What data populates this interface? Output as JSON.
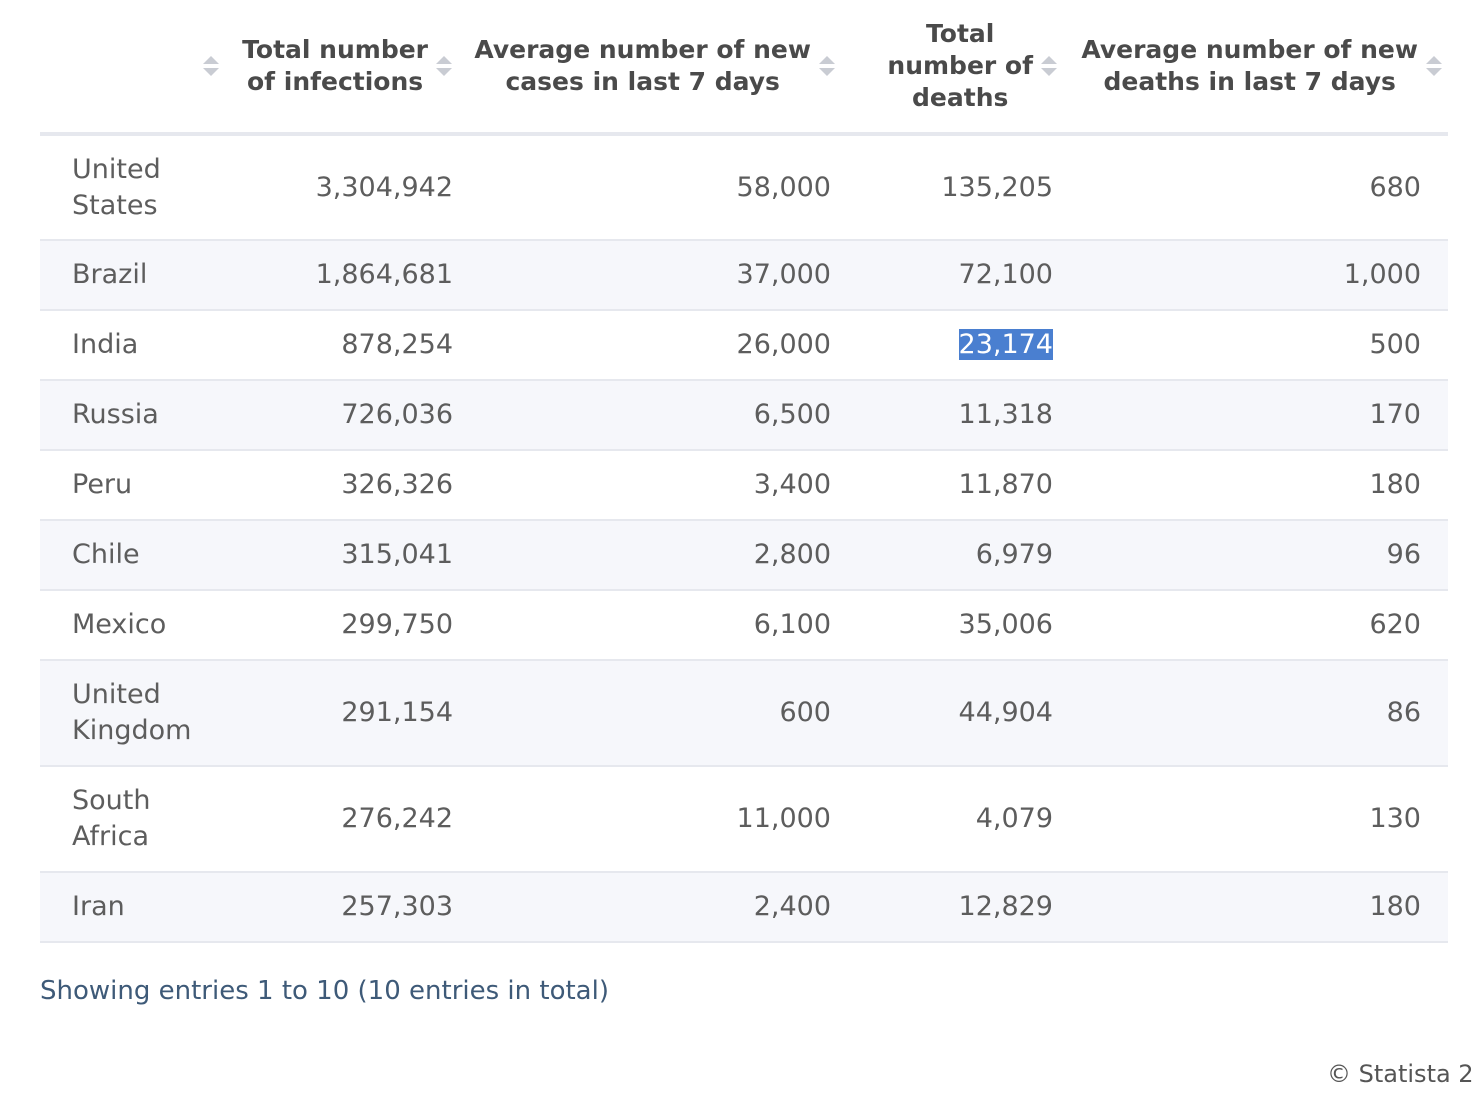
{
  "table": {
    "headers": [
      {
        "label": "",
        "lines": []
      },
      {
        "label": "Total number of infections",
        "lines": [
          "Total number",
          "of infections"
        ]
      },
      {
        "label": "Average number of new cases in last 7 days",
        "lines": [
          "Average number of new",
          "cases in last 7 days"
        ]
      },
      {
        "label": "Total number of deaths",
        "lines": [
          "Total",
          "number of",
          "deaths"
        ]
      },
      {
        "label": "Average number of new deaths in last 7 days",
        "lines": [
          "Average number of new",
          "deaths in last 7 days"
        ]
      }
    ],
    "rows": [
      {
        "country_lines": [
          "United",
          "States"
        ],
        "infections": "3,304,942",
        "new_cases": "58,000",
        "deaths": "135,205",
        "new_deaths": "680"
      },
      {
        "country_lines": [
          "Brazil"
        ],
        "infections": "1,864,681",
        "new_cases": "37,000",
        "deaths": "72,100",
        "new_deaths": "1,000"
      },
      {
        "country_lines": [
          "India"
        ],
        "infections": "878,254",
        "new_cases": "26,000",
        "deaths": "23,174",
        "new_deaths": "500"
      },
      {
        "country_lines": [
          "Russia"
        ],
        "infections": "726,036",
        "new_cases": "6,500",
        "deaths": "11,318",
        "new_deaths": "170"
      },
      {
        "country_lines": [
          "Peru"
        ],
        "infections": "326,326",
        "new_cases": "3,400",
        "deaths": "11,870",
        "new_deaths": "180"
      },
      {
        "country_lines": [
          "Chile"
        ],
        "infections": "315,041",
        "new_cases": "2,800",
        "deaths": "6,979",
        "new_deaths": "96"
      },
      {
        "country_lines": [
          "Mexico"
        ],
        "infections": "299,750",
        "new_cases": "6,100",
        "deaths": "35,006",
        "new_deaths": "620"
      },
      {
        "country_lines": [
          "United",
          "Kingdom"
        ],
        "infections": "291,154",
        "new_cases": "600",
        "deaths": "44,904",
        "new_deaths": "86"
      },
      {
        "country_lines": [
          "South",
          "Africa"
        ],
        "infections": "276,242",
        "new_cases": "11,000",
        "deaths": "4,079",
        "new_deaths": "130"
      },
      {
        "country_lines": [
          "Iran"
        ],
        "infections": "257,303",
        "new_cases": "2,400",
        "deaths": "12,829",
        "new_deaths": "180"
      }
    ],
    "selected_cell": {
      "row": 2,
      "column": "deaths",
      "highlight_color": "#4a7fd0"
    }
  },
  "footer": {
    "entries_info": "Showing entries 1 to 10 (10 entries in total)",
    "copyright": "© Statista 2"
  },
  "colors": {
    "header_text": "#4a4a4a",
    "cell_text": "#5d5d5d",
    "row_alt_bg": "#f6f7fb",
    "border": "#e6e8ee",
    "footer_text": "#3e5a78",
    "sort_icon": "#c9ccd3"
  },
  "icons": {
    "sort": "sort-icon"
  }
}
